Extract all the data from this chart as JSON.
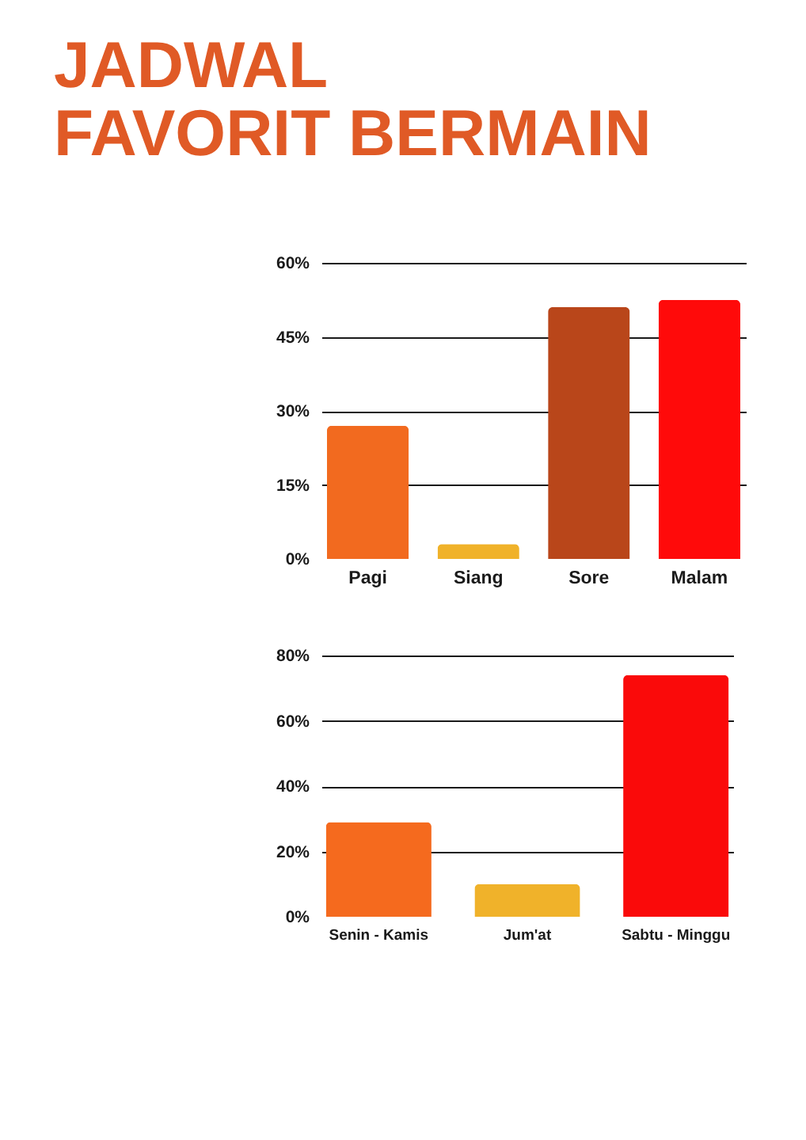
{
  "chart_data": [
    {
      "type": "bar",
      "title": "JADWAL FAVORIT BERMAIN",
      "categories": [
        "Pagi",
        "Siang",
        "Sore",
        "Malam"
      ],
      "values": [
        27,
        3,
        51,
        52.5
      ],
      "colors": [
        "#f26a1f",
        "#f0b22a",
        "#b9461a",
        "#ff0a0a"
      ],
      "ylim": [
        0,
        60
      ],
      "yticks": [
        {
          "value": 0,
          "label": "0%"
        },
        {
          "value": 15,
          "label": "15%"
        },
        {
          "value": 30,
          "label": "30%"
        },
        {
          "value": 45,
          "label": "45%"
        },
        {
          "value": 60,
          "label": "60%"
        }
      ],
      "grid": "y"
    },
    {
      "type": "bar",
      "categories": [
        "Senin - Kamis",
        "Jum'at",
        "Sabtu - Minggu"
      ],
      "values": [
        29,
        10,
        74
      ],
      "colors": [
        "#f56a1e",
        "#f0b22a",
        "#fa0a0a"
      ],
      "ylim": [
        0,
        80
      ],
      "yticks": [
        {
          "value": 0,
          "label": "0%"
        },
        {
          "value": 20,
          "label": "20%"
        },
        {
          "value": 40,
          "label": "40%"
        },
        {
          "value": 60,
          "label": "60%"
        },
        {
          "value": 80,
          "label": "80%"
        }
      ],
      "grid": "y"
    }
  ]
}
